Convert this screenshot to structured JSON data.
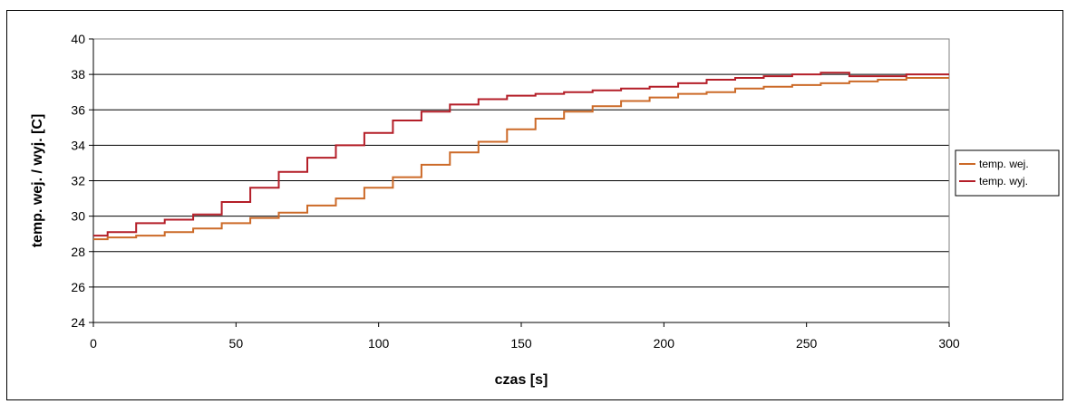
{
  "chart_data": {
    "type": "line",
    "title": "",
    "xlabel": "czas [s]",
    "ylabel": "temp. wej. / wyj. [C]",
    "xlim": [
      0,
      300
    ],
    "ylim": [
      24,
      40
    ],
    "x_ticks": [
      0,
      50,
      100,
      150,
      200,
      250,
      300
    ],
    "y_ticks": [
      24,
      26,
      28,
      30,
      32,
      34,
      36,
      38,
      40
    ],
    "grid": "horizontal",
    "legend_position": "right",
    "series": [
      {
        "name": "temp. wej.",
        "color": "#cc6a28",
        "x": [
          0,
          10,
          20,
          30,
          40,
          50,
          60,
          70,
          80,
          90,
          100,
          110,
          120,
          130,
          140,
          150,
          160,
          170,
          180,
          190,
          200,
          210,
          220,
          230,
          240,
          250,
          260,
          270,
          280,
          290,
          300
        ],
        "y": [
          28.7,
          28.8,
          28.9,
          29.1,
          29.3,
          29.6,
          29.9,
          30.2,
          30.6,
          31.0,
          31.6,
          32.2,
          32.9,
          33.6,
          34.2,
          34.9,
          35.5,
          35.9,
          36.2,
          36.5,
          36.7,
          36.9,
          37.0,
          37.2,
          37.3,
          37.4,
          37.5,
          37.6,
          37.7,
          37.8,
          37.8
        ]
      },
      {
        "name": "temp. wyj.",
        "color": "#b41e28",
        "x": [
          0,
          10,
          20,
          30,
          40,
          50,
          60,
          70,
          80,
          90,
          100,
          110,
          120,
          130,
          140,
          150,
          160,
          170,
          180,
          190,
          200,
          210,
          220,
          230,
          240,
          250,
          260,
          270,
          280,
          290,
          300
        ],
        "y": [
          28.9,
          29.1,
          29.6,
          29.8,
          30.1,
          30.8,
          31.6,
          32.5,
          33.3,
          34.0,
          34.7,
          35.4,
          35.9,
          36.3,
          36.6,
          36.8,
          36.9,
          37.0,
          37.1,
          37.2,
          37.3,
          37.5,
          37.7,
          37.8,
          37.9,
          38.0,
          38.1,
          37.9,
          37.9,
          38.0,
          38.0
        ]
      }
    ]
  }
}
